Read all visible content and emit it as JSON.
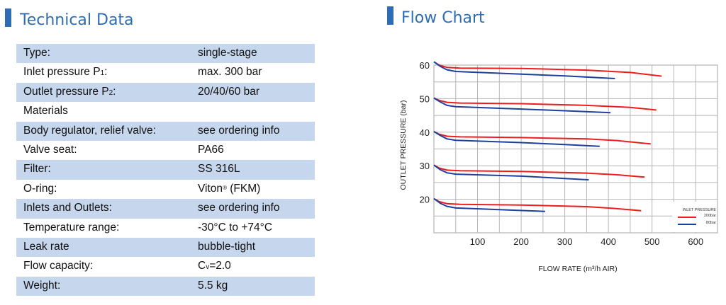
{
  "left_section": {
    "title": "Technical Data"
  },
  "right_section": {
    "title": "Flow Chart"
  },
  "table": {
    "rows": [
      {
        "label": "Type:",
        "value": "single-stage"
      },
      {
        "label": "Inlet pressure P",
        "label_sub": "1",
        "label_after": ":",
        "value": "max. 300 bar"
      },
      {
        "label": "Outlet pressure P",
        "label_sub": "2",
        "label_after": ":",
        "value": "20/40/60 bar"
      },
      {
        "label": "Materials",
        "value": ""
      },
      {
        "label": "Body regulator, relief valve:",
        "value": "see ordering info"
      },
      {
        "label": "Valve seat:",
        "value": "PA66"
      },
      {
        "label": "Filter:",
        "value": "SS 316L"
      },
      {
        "label": "O-ring:",
        "value": "Viton",
        "value_sup": "®",
        "value_after": " (FKM)"
      },
      {
        "label": "Inlets and Outlets:",
        "value": "see ordering info"
      },
      {
        "label": "Temperature range:",
        "value": "-30°C to +74°C"
      },
      {
        "label": "Leak rate",
        "value": "bubble-tight"
      },
      {
        "label": "Flow capacity:",
        "value": "C",
        "value_sub": "v",
        "value_after": "=2.0"
      },
      {
        "label": "Weight:",
        "value": "5.5 kg"
      }
    ]
  },
  "colors": {
    "accent": "#2e6db4",
    "row_shade": "#c6d6ec",
    "red": "#ee1c1c",
    "blue": "#1f3f9f",
    "grid": "#b5b5b5"
  },
  "chart_data": {
    "type": "line",
    "title": "Flow Chart",
    "xlabel": "FLOW RATE (m³/h AIR)",
    "ylabel": "OUTLET PRESSURE (bar)",
    "xlim": [
      0,
      650
    ],
    "ylim": [
      10,
      60
    ],
    "xticks": [
      100,
      200,
      300,
      400,
      500,
      600
    ],
    "yticks": [
      20,
      30,
      40,
      50,
      60
    ],
    "grid": true,
    "legend": {
      "title": "INLET PRESSURE",
      "placement": "bottom-right",
      "entries": [
        {
          "name": "200bar",
          "color": "#ee1c1c"
        },
        {
          "name": "80bar",
          "color": "#1f3f9f"
        }
      ]
    },
    "series": [
      {
        "name": "200bar",
        "set": 60,
        "points": [
          [
            0,
            61
          ],
          [
            12,
            60
          ],
          [
            30,
            59.3
          ],
          [
            60,
            59.1
          ],
          [
            200,
            59
          ],
          [
            350,
            58.5
          ],
          [
            450,
            57.8
          ],
          [
            522,
            56.7
          ]
        ]
      },
      {
        "name": "80bar",
        "set": 60,
        "points": [
          [
            0,
            61
          ],
          [
            15,
            59.6
          ],
          [
            30,
            58.6
          ],
          [
            50,
            58.1
          ],
          [
            200,
            57.3
          ],
          [
            300,
            56.8
          ],
          [
            415,
            56
          ]
        ]
      },
      {
        "name": "200bar",
        "set": 50,
        "points": [
          [
            0,
            50.2
          ],
          [
            12,
            49.5
          ],
          [
            30,
            48.9
          ],
          [
            60,
            48.7
          ],
          [
            200,
            48.5
          ],
          [
            350,
            48
          ],
          [
            450,
            47.4
          ],
          [
            510,
            46.6
          ]
        ]
      },
      {
        "name": "80bar",
        "set": 50,
        "points": [
          [
            0,
            50.2
          ],
          [
            15,
            49
          ],
          [
            30,
            48
          ],
          [
            50,
            47.6
          ],
          [
            200,
            46.9
          ],
          [
            300,
            46.4
          ],
          [
            405,
            45.8
          ]
        ]
      },
      {
        "name": "200bar",
        "set": 40,
        "points": [
          [
            0,
            40.2
          ],
          [
            12,
            39.4
          ],
          [
            30,
            38.8
          ],
          [
            60,
            38.6
          ],
          [
            200,
            38.4
          ],
          [
            350,
            38
          ],
          [
            420,
            37.5
          ],
          [
            497,
            36.5
          ]
        ]
      },
      {
        "name": "80bar",
        "set": 40,
        "points": [
          [
            0,
            40.2
          ],
          [
            15,
            39
          ],
          [
            30,
            38
          ],
          [
            50,
            37.6
          ],
          [
            200,
            36.9
          ],
          [
            300,
            36.3
          ],
          [
            380,
            35.8
          ]
        ]
      },
      {
        "name": "200bar",
        "set": 30,
        "points": [
          [
            0,
            30.2
          ],
          [
            12,
            29.3
          ],
          [
            30,
            28.7
          ],
          [
            60,
            28.5
          ],
          [
            200,
            28.3
          ],
          [
            350,
            27.8
          ],
          [
            420,
            27.3
          ],
          [
            483,
            26.6
          ]
        ]
      },
      {
        "name": "80bar",
        "set": 30,
        "points": [
          [
            0,
            30.2
          ],
          [
            15,
            28.8
          ],
          [
            30,
            27.9
          ],
          [
            50,
            27.5
          ],
          [
            200,
            26.9
          ],
          [
            300,
            26.2
          ],
          [
            355,
            25.8
          ]
        ]
      },
      {
        "name": "200bar",
        "set": 20,
        "points": [
          [
            0,
            20.2
          ],
          [
            12,
            19.3
          ],
          [
            30,
            18.7
          ],
          [
            60,
            18.5
          ],
          [
            200,
            18.3
          ],
          [
            350,
            17.8
          ],
          [
            410,
            17.3
          ],
          [
            475,
            16.6
          ]
        ]
      },
      {
        "name": "80bar",
        "set": 20,
        "points": [
          [
            0,
            20.2
          ],
          [
            15,
            18.8
          ],
          [
            30,
            17.9
          ],
          [
            50,
            17.4
          ],
          [
            150,
            16.9
          ],
          [
            255,
            16.4
          ]
        ]
      }
    ]
  }
}
